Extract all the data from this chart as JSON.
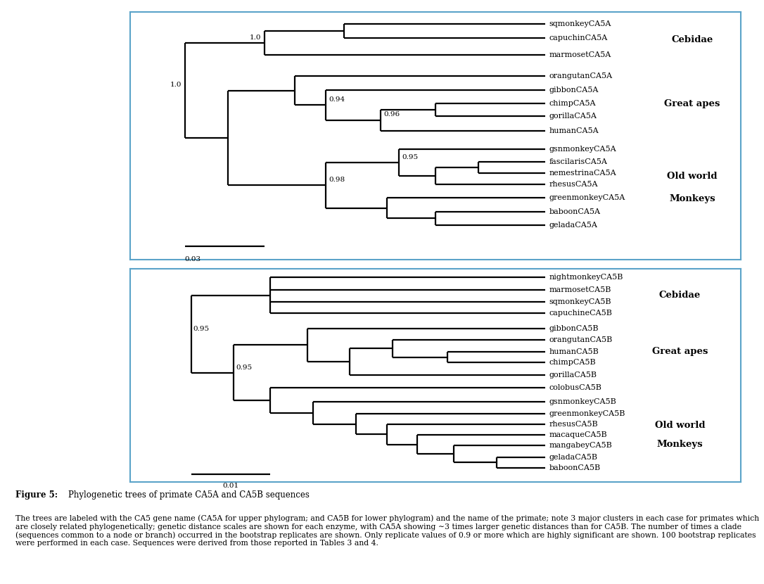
{
  "fig_width": 10.86,
  "fig_height": 8.3,
  "background_color": "#ffffff",
  "box_color": "#5ba3c9",
  "caption_title_bold": "Figure 5: ",
  "caption_title_rest": "Phylogenetic trees of primate CA5A and CA5B sequences",
  "caption_body": "The trees are labeled with the CA5 gene name (CA5A for upper phylogram; and CA5B for lower phylogram) and the name of the primate; note 3 major clusters in each case for primates which are closely related phylogenetically; genetic distance scales are shown for each enzyme, with CA5A showing ~3 times larger genetic distances than for CA5B. The number of times a clade (sequences common to a node or branch) occurred in the bootstrap replicates are shown. Only replicate values of 0.9 or more which are highly significant are shown. 100 bootstrap replicates were performed in each case. Sequences were derived from those reported in Tables 3 and 4.",
  "lw": 1.6,
  "leaf_fontsize": 8.0,
  "bs_fontsize": 7.5,
  "group_fontsize": 9.5
}
